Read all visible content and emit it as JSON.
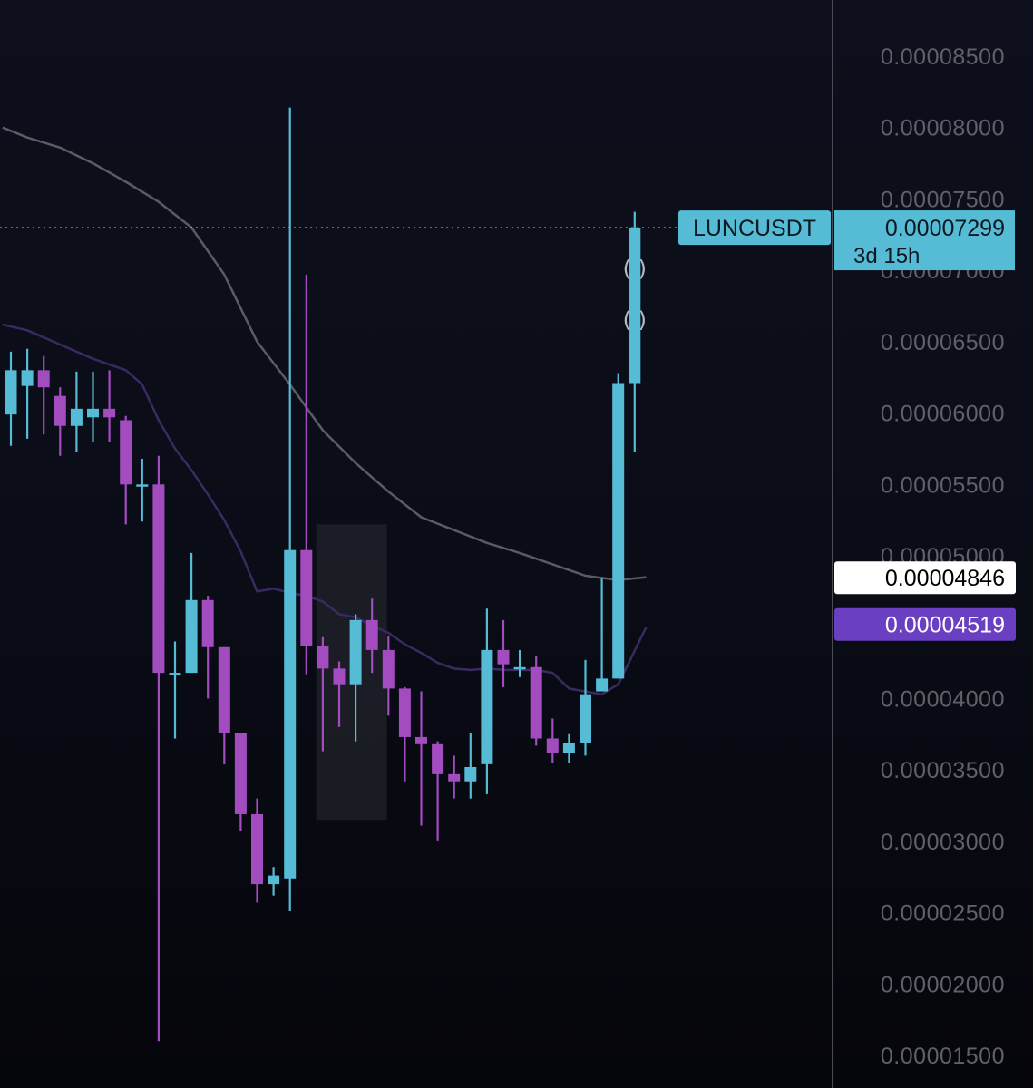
{
  "chart_data": {
    "type": "candlestick",
    "symbol": "LUNCUSDT",
    "last_price": "0.00007299",
    "countdown": "3d 15h",
    "price_axis": {
      "range": [
        1.3e-05,
        8.88e-05
      ],
      "ticks": [
        "0.00008500",
        "0.00008000",
        "0.00007500",
        "0.00007000",
        "0.00006500",
        "0.00006000",
        "0.00005500",
        "0.00005000",
        "0.00004500",
        "0.00004000",
        "0.00003500",
        "0.00003000",
        "0.00002500",
        "0.00002000",
        "0.00001500"
      ]
    },
    "indicator_labels": [
      {
        "value": "0.00004846",
        "color": "#ffffff",
        "text_color": "#000000"
      },
      {
        "value": "0.00004519",
        "color": "#6a3fc2",
        "text_color": "#ffffff"
      }
    ],
    "colors": {
      "up": "#56bcd6",
      "down": "#a24cc0",
      "ma_slow": "#5a5c63",
      "ma_fast": "#3a2a62",
      "last_price_line": "#56bcd6",
      "box": "#2a2c33"
    },
    "candles": [
      {
        "o": 5.99e-05,
        "h": 6.43e-05,
        "l": 5.77e-05,
        "c": 6.3e-05
      },
      {
        "o": 6.19e-05,
        "h": 6.45e-05,
        "l": 5.82e-05,
        "c": 6.3e-05
      },
      {
        "o": 6.3e-05,
        "h": 6.4e-05,
        "l": 5.85e-05,
        "c": 6.18e-05
      },
      {
        "o": 6.12e-05,
        "h": 6.18e-05,
        "l": 5.7e-05,
        "c": 5.91e-05
      },
      {
        "o": 5.91e-05,
        "h": 6.29e-05,
        "l": 5.73e-05,
        "c": 6.03e-05
      },
      {
        "o": 5.97e-05,
        "h": 6.29e-05,
        "l": 5.8e-05,
        "c": 6.03e-05
      },
      {
        "o": 6.03e-05,
        "h": 6.3e-05,
        "l": 5.8e-05,
        "c": 5.97e-05
      },
      {
        "o": 5.95e-05,
        "h": 5.98e-05,
        "l": 5.22e-05,
        "c": 5.5e-05
      },
      {
        "o": 5.5e-05,
        "h": 5.68e-05,
        "l": 5.24e-05,
        "c": 5.5e-05
      },
      {
        "o": 5.5e-05,
        "h": 5.7e-05,
        "l": 1.6e-05,
        "c": 4.18e-05
      },
      {
        "o": 4.18e-05,
        "h": 4.4e-05,
        "l": 3.72e-05,
        "c": 4.18e-05
      },
      {
        "o": 4.18e-05,
        "h": 5.02e-05,
        "l": 4.18e-05,
        "c": 4.69e-05
      },
      {
        "o": 4.69e-05,
        "h": 4.72e-05,
        "l": 4e-05,
        "c": 4.36e-05
      },
      {
        "o": 4.36e-05,
        "h": 4.36e-05,
        "l": 3.54e-05,
        "c": 3.76e-05
      },
      {
        "o": 3.76e-05,
        "h": 3.76e-05,
        "l": 3.07e-05,
        "c": 3.19e-05
      },
      {
        "o": 3.19e-05,
        "h": 3.3e-05,
        "l": 2.57e-05,
        "c": 2.7e-05
      },
      {
        "o": 2.7e-05,
        "h": 2.82e-05,
        "l": 2.62e-05,
        "c": 2.76e-05
      },
      {
        "o": 2.74e-05,
        "h": 8.14e-05,
        "l": 2.51e-05,
        "c": 5.04e-05
      },
      {
        "o": 5.04e-05,
        "h": 6.97e-05,
        "l": 4.17e-05,
        "c": 4.37e-05
      },
      {
        "o": 4.37e-05,
        "h": 4.43e-05,
        "l": 3.63e-05,
        "c": 4.21e-05
      },
      {
        "o": 4.21e-05,
        "h": 4.26e-05,
        "l": 3.8e-05,
        "c": 4.1e-05
      },
      {
        "o": 4.1e-05,
        "h": 4.59e-05,
        "l": 3.7e-05,
        "c": 4.55e-05
      },
      {
        "o": 4.55e-05,
        "h": 4.7e-05,
        "l": 4.18e-05,
        "c": 4.34e-05
      },
      {
        "o": 4.34e-05,
        "h": 4.44e-05,
        "l": 3.88e-05,
        "c": 4.07e-05
      },
      {
        "o": 4.07e-05,
        "h": 4.08e-05,
        "l": 3.42e-05,
        "c": 3.73e-05
      },
      {
        "o": 3.73e-05,
        "h": 4.05e-05,
        "l": 3.11e-05,
        "c": 3.68e-05
      },
      {
        "o": 3.68e-05,
        "h": 3.7e-05,
        "l": 3e-05,
        "c": 3.47e-05
      },
      {
        "o": 3.47e-05,
        "h": 3.6e-05,
        "l": 3.3e-05,
        "c": 3.42e-05
      },
      {
        "o": 3.42e-05,
        "h": 3.76e-05,
        "l": 3.3e-05,
        "c": 3.52e-05
      },
      {
        "o": 3.54e-05,
        "h": 4.63e-05,
        "l": 3.33e-05,
        "c": 4.34e-05
      },
      {
        "o": 4.34e-05,
        "h": 4.55e-05,
        "l": 4.08e-05,
        "c": 4.24e-05
      },
      {
        "o": 4.22e-05,
        "h": 4.34e-05,
        "l": 4.15e-05,
        "c": 4.22e-05
      },
      {
        "o": 4.22e-05,
        "h": 4.3e-05,
        "l": 3.67e-05,
        "c": 3.72e-05
      },
      {
        "o": 3.72e-05,
        "h": 3.86e-05,
        "l": 3.55e-05,
        "c": 3.62e-05
      },
      {
        "o": 3.62e-05,
        "h": 3.75e-05,
        "l": 3.55e-05,
        "c": 3.69e-05
      },
      {
        "o": 3.69e-05,
        "h": 4.27e-05,
        "l": 3.6e-05,
        "c": 4.03e-05
      },
      {
        "o": 4.05e-05,
        "h": 4.84e-05,
        "l": 4.05e-05,
        "c": 4.14e-05
      },
      {
        "o": 4.14e-05,
        "h": 6.28e-05,
        "l": 4.14e-05,
        "c": 6.21e-05
      },
      {
        "o": 6.21e-05,
        "h": 7.41e-05,
        "l": 5.73e-05,
        "c": 7.3e-05
      }
    ],
    "ma_slow": [
      {
        "i": -0.5,
        "v": 8e-05
      },
      {
        "i": 1,
        "v": 7.93e-05
      },
      {
        "i": 3,
        "v": 7.86e-05
      },
      {
        "i": 5,
        "v": 7.75e-05
      },
      {
        "i": 7,
        "v": 7.62e-05
      },
      {
        "i": 9,
        "v": 7.48e-05
      },
      {
        "i": 11,
        "v": 7.3e-05
      },
      {
        "i": 13,
        "v": 6.97e-05
      },
      {
        "i": 15,
        "v": 6.5e-05
      },
      {
        "i": 17,
        "v": 6.2e-05
      },
      {
        "i": 19,
        "v": 5.88e-05
      },
      {
        "i": 21,
        "v": 5.65e-05
      },
      {
        "i": 23,
        "v": 5.45e-05
      },
      {
        "i": 25,
        "v": 5.27e-05
      },
      {
        "i": 27,
        "v": 5.18e-05
      },
      {
        "i": 29,
        "v": 5.09e-05
      },
      {
        "i": 31,
        "v": 5.02e-05
      },
      {
        "i": 33,
        "v": 4.94e-05
      },
      {
        "i": 35,
        "v": 4.86e-05
      },
      {
        "i": 37,
        "v": 4.83e-05
      },
      {
        "i": 38.7,
        "v": 4.85e-05
      }
    ],
    "ma_fast": [
      {
        "i": -0.5,
        "v": 6.62e-05
      },
      {
        "i": 1,
        "v": 6.58e-05
      },
      {
        "i": 3,
        "v": 6.48e-05
      },
      {
        "i": 5,
        "v": 6.38e-05
      },
      {
        "i": 7,
        "v": 6.3e-05
      },
      {
        "i": 8,
        "v": 6.2e-05
      },
      {
        "i": 9,
        "v": 5.95e-05
      },
      {
        "i": 10,
        "v": 5.75e-05
      },
      {
        "i": 11,
        "v": 5.6e-05
      },
      {
        "i": 12,
        "v": 5.43e-05
      },
      {
        "i": 13,
        "v": 5.25e-05
      },
      {
        "i": 14,
        "v": 5.03e-05
      },
      {
        "i": 15,
        "v": 4.75e-05
      },
      {
        "i": 16,
        "v": 4.77e-05
      },
      {
        "i": 17,
        "v": 4.74e-05
      },
      {
        "i": 18,
        "v": 4.72e-05
      },
      {
        "i": 19,
        "v": 4.68e-05
      },
      {
        "i": 20,
        "v": 4.59e-05
      },
      {
        "i": 21,
        "v": 4.57e-05
      },
      {
        "i": 22,
        "v": 4.51e-05
      },
      {
        "i": 23,
        "v": 4.46e-05
      },
      {
        "i": 24,
        "v": 4.38e-05
      },
      {
        "i": 25,
        "v": 4.32e-05
      },
      {
        "i": 26,
        "v": 4.25e-05
      },
      {
        "i": 27,
        "v": 4.21e-05
      },
      {
        "i": 28,
        "v": 4.2e-05
      },
      {
        "i": 29,
        "v": 4.21e-05
      },
      {
        "i": 30,
        "v": 4.2e-05
      },
      {
        "i": 31,
        "v": 4.2e-05
      },
      {
        "i": 32,
        "v": 4.2e-05
      },
      {
        "i": 33,
        "v": 4.18e-05
      },
      {
        "i": 34,
        "v": 4.07e-05
      },
      {
        "i": 35,
        "v": 4.05e-05
      },
      {
        "i": 36,
        "v": 4.03e-05
      },
      {
        "i": 37,
        "v": 4.1e-05
      },
      {
        "i": 38.7,
        "v": 4.5e-05
      }
    ],
    "highlight_range": {
      "from_index": 18.6,
      "to_index": 22.9,
      "top": 5.22e-05,
      "bottom": 3.15e-05
    }
  }
}
